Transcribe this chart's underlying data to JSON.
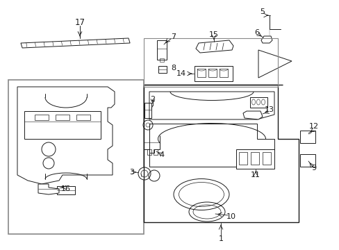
{
  "bg": "#ffffff",
  "lc": "#1a1a1a",
  "gray": "#888888",
  "fig_w": 4.89,
  "fig_h": 3.6,
  "dpi": 100,
  "label_fs": 7.5,
  "small_fs": 6.5
}
